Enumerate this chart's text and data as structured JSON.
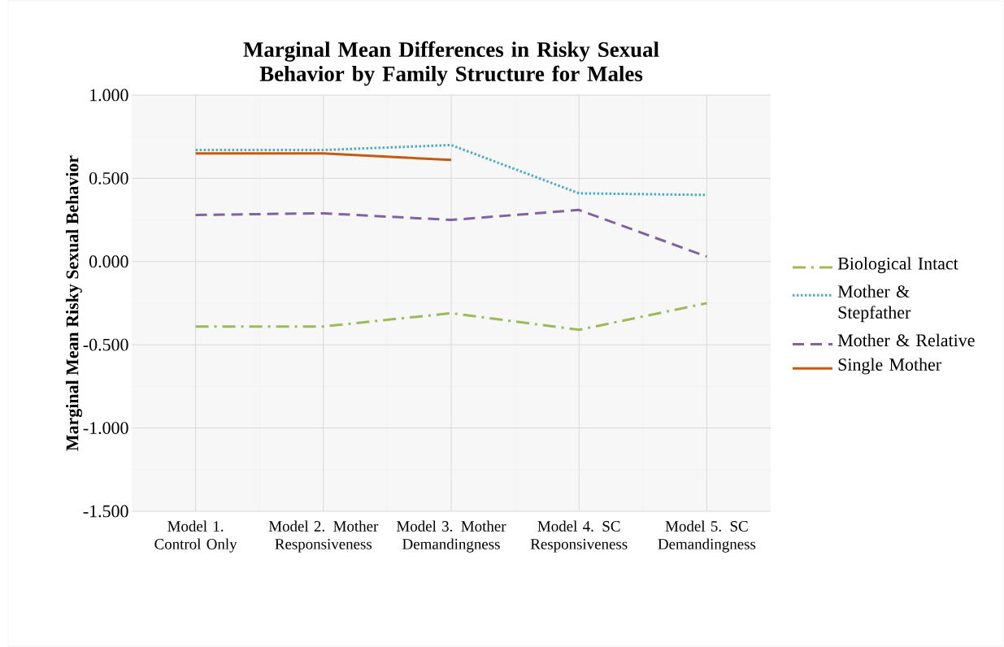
{
  "chart_data": {
    "type": "line",
    "title": "Marginal Mean Differences in Risky Sexual Behavior by Family Structure for Males",
    "ylabel": "Marginal Mean Risky Sexual Behavior",
    "categories": [
      "Model 1. Control Only",
      "Model 2. Mother Responsiveness",
      "Model 3. Mother Demandingness",
      "Model 4. SC Responsiveness",
      "Model 5. SC Demandingness"
    ],
    "series": [
      {
        "name": "Biological Intact",
        "color": "#9bbb59",
        "line_style": "dashdot",
        "values": [
          -0.39,
          -0.39,
          -0.31,
          -0.41,
          -0.25
        ]
      },
      {
        "name": "Mother & Stepfather",
        "color": "#4bacc6",
        "line_style": "dotted",
        "values": [
          0.67,
          0.67,
          0.7,
          0.41,
          0.4
        ]
      },
      {
        "name": "Mother & Relative",
        "color": "#8064a2",
        "line_style": "dashed",
        "values": [
          0.28,
          0.29,
          0.25,
          0.31,
          0.03
        ]
      },
      {
        "name": "Single Mother",
        "color": "#c55a11",
        "line_style": "solid",
        "values": [
          0.65,
          0.65,
          0.61,
          null,
          null
        ]
      }
    ],
    "ylim": [
      -1.5,
      1.0
    ],
    "yticks": [
      {
        "value": -1.5,
        "label": "-1.500"
      },
      {
        "value": -1.0,
        "label": "-1.000"
      },
      {
        "value": -0.5,
        "label": "-0.500"
      },
      {
        "value": 0,
        "label": "0.000"
      },
      {
        "value": 0.5,
        "label": "0.500"
      },
      {
        "value": 1.0,
        "label": "1.000"
      }
    ],
    "grid": true,
    "legend": "right"
  }
}
